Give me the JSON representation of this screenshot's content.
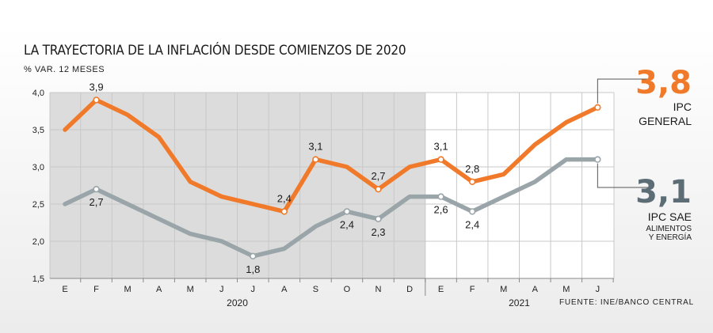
{
  "title": "LA TRAYECTORIA DE LA INFLACIÓN DESDE COMIENZOS DE 2020",
  "unit": "% VAR. 12 MESES",
  "source": "FUENTE: INE/BANCO CENTRAL",
  "colors": {
    "ipc_general": "#f07a2a",
    "ipc_sae": "#9aa5a9",
    "shade": "#dcdcdc",
    "callout_general": "#f07a2a",
    "callout_sae": "#5c6d75"
  },
  "callouts": {
    "general": {
      "value": "3,8",
      "label1": "IPC",
      "label2": "GENERAL"
    },
    "sae": {
      "value": "3,1",
      "label1": "IPC SAE",
      "label2": "ALIMENTOS",
      "label3": "Y ENERGÍA"
    }
  },
  "chart_data": {
    "type": "line",
    "categories": [
      "E",
      "F",
      "M",
      "A",
      "M",
      "J",
      "J",
      "A",
      "S",
      "O",
      "N",
      "D",
      "E",
      "F",
      "M",
      "A",
      "M",
      "J"
    ],
    "year_labels": [
      {
        "label": "2020",
        "start_index": 0,
        "end_index": 11
      },
      {
        "label": "2021",
        "start_index": 12,
        "end_index": 17
      }
    ],
    "shaded_range": [
      0,
      12
    ],
    "y_ticks": [
      "1,5",
      "2,0",
      "2,5",
      "3,0",
      "3,5",
      "4,0"
    ],
    "y_tick_values": [
      1.5,
      2.0,
      2.5,
      3.0,
      3.5,
      4.0
    ],
    "ylim": [
      1.5,
      4.0
    ],
    "series": [
      {
        "name": "IPC GENERAL",
        "key": "ipc_general",
        "values": [
          3.5,
          3.9,
          3.7,
          3.4,
          2.8,
          2.6,
          2.5,
          2.4,
          3.1,
          3.0,
          2.7,
          3.0,
          3.1,
          2.8,
          2.9,
          3.3,
          3.6,
          3.8
        ],
        "point_labels": [
          {
            "index": 1,
            "text": "3,9",
            "pos": "above"
          },
          {
            "index": 7,
            "text": "2,4",
            "pos": "above"
          },
          {
            "index": 8,
            "text": "3,1",
            "pos": "above"
          },
          {
            "index": 10,
            "text": "2,7",
            "pos": "above"
          },
          {
            "index": 12,
            "text": "3,1",
            "pos": "above"
          },
          {
            "index": 13,
            "text": "2,8",
            "pos": "above"
          }
        ],
        "markers": [
          1,
          7,
          8,
          10,
          12,
          13,
          17
        ]
      },
      {
        "name": "IPC SAE",
        "key": "ipc_sae",
        "values": [
          2.5,
          2.7,
          2.5,
          2.3,
          2.1,
          2.0,
          1.8,
          1.9,
          2.2,
          2.4,
          2.3,
          2.6,
          2.6,
          2.4,
          2.6,
          2.8,
          3.1,
          3.1
        ],
        "point_labels": [
          {
            "index": 1,
            "text": "2,7",
            "pos": "below"
          },
          {
            "index": 6,
            "text": "1,8",
            "pos": "below"
          },
          {
            "index": 9,
            "text": "2,4",
            "pos": "below"
          },
          {
            "index": 10,
            "text": "2,3",
            "pos": "below"
          },
          {
            "index": 12,
            "text": "2,6",
            "pos": "below"
          },
          {
            "index": 13,
            "text": "2,4",
            "pos": "below"
          }
        ],
        "markers": [
          1,
          6,
          9,
          10,
          12,
          13,
          17
        ]
      }
    ]
  }
}
